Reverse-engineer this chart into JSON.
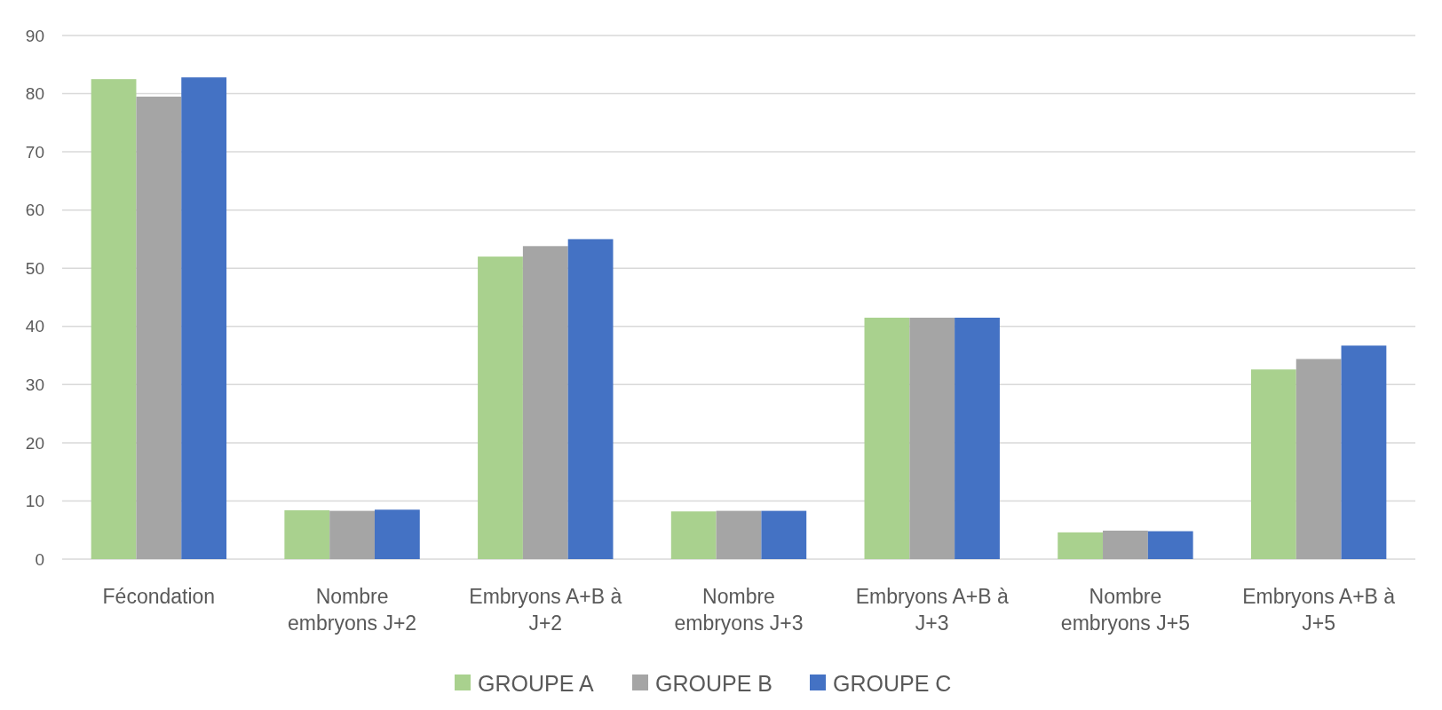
{
  "chart_data": {
    "type": "bar",
    "categories": [
      "Fécondation",
      "Nombre embryons J+2",
      "Embryons A+B à J+2",
      "Nombre embryons J+3",
      "Embryons A+B à J+3",
      "Nombre embryons J+5",
      "Embryons A+B à J+5"
    ],
    "series": [
      {
        "name": "GROUPE A",
        "color": "#a9d18e",
        "values": [
          82.5,
          8.4,
          52,
          8.2,
          41.5,
          4.6,
          32.6
        ]
      },
      {
        "name": "GROUPE B",
        "color": "#a5a5a5",
        "values": [
          79.5,
          8.3,
          53.8,
          8.3,
          41.5,
          4.9,
          34.4
        ]
      },
      {
        "name": "GROUPE C",
        "color": "#4472c4",
        "values": [
          82.8,
          8.5,
          55,
          8.3,
          41.5,
          4.8,
          36.7
        ]
      }
    ],
    "ylim": [
      0,
      90
    ],
    "yticks": [
      0,
      10,
      20,
      30,
      40,
      50,
      60,
      70,
      80,
      90
    ],
    "grid": "y",
    "legend": "bottom"
  }
}
